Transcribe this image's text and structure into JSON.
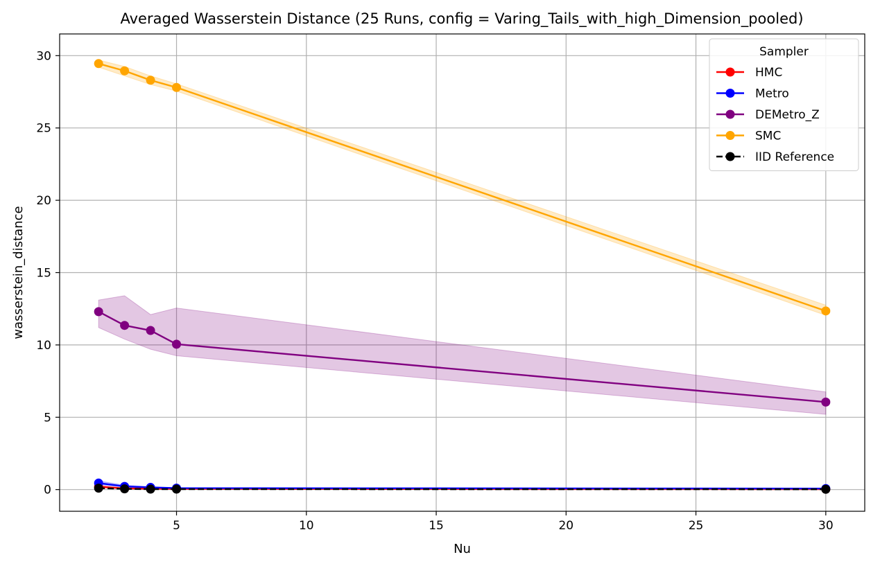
{
  "chart_data": {
    "type": "line",
    "title": "Averaged Wasserstein Distance (25 Runs, config = Varing_Tails_with_high_Dimension_pooled)",
    "xlabel": "Nu",
    "ylabel": "wasserstein_distance",
    "x": [
      2,
      3,
      4,
      5,
      30
    ],
    "xlim": [
      0.5,
      31.5
    ],
    "ylim": [
      -1.5,
      31.5
    ],
    "xticks": [
      5,
      10,
      15,
      20,
      25,
      30
    ],
    "yticks": [
      0,
      5,
      10,
      15,
      20,
      25,
      30
    ],
    "grid": true,
    "legend": {
      "title": "Sampler",
      "placement": "top-right"
    },
    "series": [
      {
        "name": "HMC",
        "color": "#ff0000",
        "linestyle": "solid",
        "values": [
          0.2,
          0.08,
          0.06,
          0.05,
          0.03
        ],
        "band_lower": [
          0.12,
          0.05,
          0.04,
          0.04,
          0.02
        ],
        "band_upper": [
          0.28,
          0.12,
          0.09,
          0.07,
          0.05
        ]
      },
      {
        "name": "Metro",
        "color": "#0000ff",
        "linestyle": "solid",
        "values": [
          0.45,
          0.22,
          0.15,
          0.1,
          0.07
        ],
        "band_lower": [
          0.35,
          0.17,
          0.11,
          0.08,
          0.05
        ],
        "band_upper": [
          0.6,
          0.3,
          0.2,
          0.13,
          0.1
        ]
      },
      {
        "name": "DEMetro_Z",
        "color": "#800080",
        "linestyle": "solid",
        "values": [
          12.3,
          11.35,
          11.0,
          10.05,
          6.05
        ],
        "band_lower": [
          11.2,
          10.4,
          9.7,
          9.25,
          5.2
        ],
        "band_upper": [
          13.1,
          13.4,
          12.1,
          12.55,
          6.75
        ]
      },
      {
        "name": "SMC",
        "color": "#ffa500",
        "linestyle": "solid",
        "values": [
          29.45,
          28.95,
          28.3,
          27.8,
          12.35
        ],
        "band_lower": [
          29.2,
          28.6,
          28.0,
          27.55,
          12.05
        ],
        "band_upper": [
          29.7,
          29.25,
          28.6,
          28.05,
          12.75
        ]
      },
      {
        "name": "IID Reference",
        "color": "#000000",
        "linestyle": "dashed",
        "values": [
          0.1,
          0.05,
          0.03,
          0.03,
          0.02
        ]
      }
    ]
  }
}
